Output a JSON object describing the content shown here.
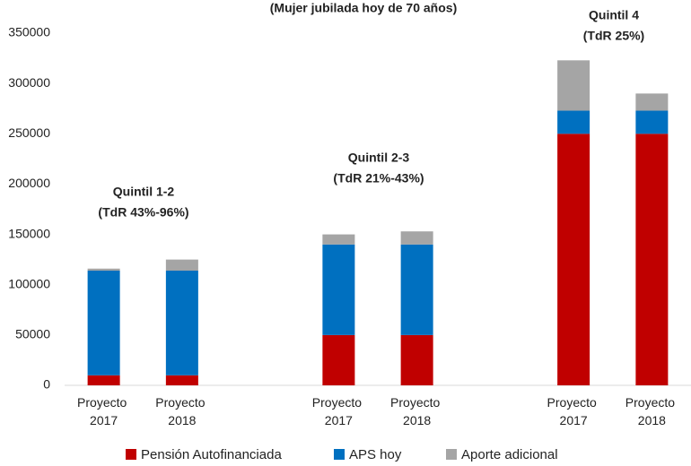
{
  "chart_data": {
    "type": "stacked_bar",
    "title": "(Mujer jubilada hoy de 70 años)",
    "categories": [
      "Proyecto 2017",
      "Proyecto 2018",
      null,
      "Proyecto 2017",
      "Proyecto 2018",
      null,
      "Proyecto 2017",
      "Proyecto 2018"
    ],
    "series": [
      {
        "name": "Pensión Autofinanciada",
        "color": "#c00000",
        "values": [
          10000,
          10000,
          null,
          50000,
          50000,
          null,
          250000,
          250000
        ]
      },
      {
        "name": "APS hoy",
        "color": "#0070c0",
        "values": [
          104000,
          104000,
          null,
          90000,
          90000,
          null,
          23000,
          23000
        ]
      },
      {
        "name": "Aporte adicional",
        "color": "#a5a5a5",
        "values": [
          2000,
          11000,
          null,
          10000,
          13000,
          null,
          50000,
          17000
        ]
      }
    ],
    "annotations": [
      [
        "Quintil 1-2",
        "(TdR 43%-96%)"
      ],
      [
        "Quintil 2-3",
        "(TdR 21%-43%)"
      ],
      [
        "Quintil 4",
        "(TdR 25%)"
      ]
    ],
    "ylim": [
      0,
      350000
    ],
    "yticks": [
      0,
      50000,
      100000,
      150000,
      200000,
      250000,
      300000,
      350000
    ],
    "grid": false,
    "legend": "bottom"
  }
}
